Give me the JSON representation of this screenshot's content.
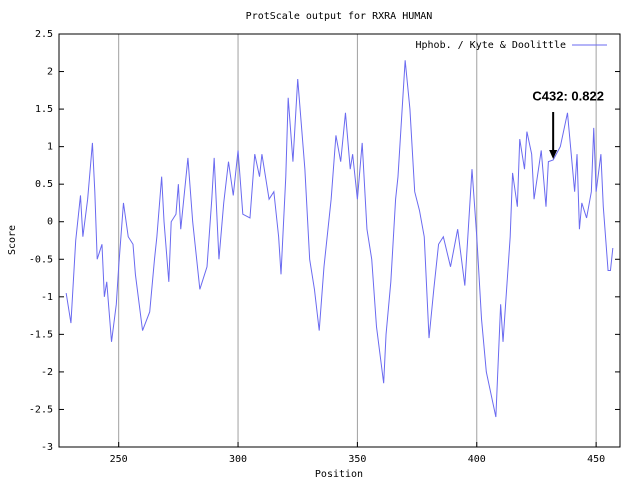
{
  "chart_data": {
    "type": "line",
    "title": "ProtScale output for RXRA HUMAN",
    "x_label": "Position",
    "y_label": "Score",
    "x": [
      228,
      230,
      231,
      232,
      234,
      235,
      237,
      239,
      240,
      241,
      243,
      244,
      245,
      247,
      249,
      250,
      252,
      254,
      256,
      257,
      260,
      263,
      265,
      266,
      268,
      269,
      271,
      272,
      274,
      275,
      276,
      279,
      281,
      282,
      284,
      287,
      289,
      290,
      292,
      294,
      296,
      298,
      300,
      302,
      305,
      307,
      309,
      310,
      313,
      315,
      317,
      318,
      320,
      321,
      323,
      325,
      327,
      328,
      330,
      332,
      334,
      336,
      339,
      341,
      343,
      345,
      347,
      348,
      350,
      352,
      354,
      356,
      358,
      361,
      362,
      364,
      366,
      367,
      370,
      372,
      374,
      376,
      378,
      380,
      382,
      384,
      386,
      389,
      392,
      395,
      398,
      400,
      402,
      404,
      408,
      410,
      411,
      414,
      415,
      417,
      418,
      420,
      421,
      423,
      424,
      427,
      429,
      430,
      432,
      435,
      438,
      441,
      442,
      443,
      444,
      446,
      448,
      449,
      450,
      452,
      453,
      455,
      456,
      457
    ],
    "series": [
      {
        "name": "Hphob. / Kyte & Doolittle",
        "color": "#6a6af0",
        "values": [
          -0.95,
          -1.35,
          -0.8,
          -0.25,
          0.35,
          -0.2,
          0.3,
          1.05,
          0.4,
          -0.5,
          -0.3,
          -1.0,
          -0.8,
          -1.6,
          -1.1,
          -0.6,
          0.25,
          -0.2,
          -0.3,
          -0.7,
          -1.45,
          -1.2,
          -0.5,
          -0.2,
          0.6,
          0.0,
          -0.8,
          0.0,
          0.1,
          0.5,
          -0.1,
          0.85,
          0.0,
          -0.3,
          -0.9,
          -0.6,
          0.3,
          0.85,
          -0.5,
          0.25,
          0.8,
          0.35,
          0.95,
          0.1,
          0.05,
          0.9,
          0.6,
          0.9,
          0.3,
          0.4,
          -0.2,
          -0.7,
          0.6,
          1.65,
          0.8,
          1.9,
          1.1,
          0.7,
          -0.5,
          -0.9,
          -1.45,
          -0.6,
          0.3,
          1.15,
          0.8,
          1.45,
          0.7,
          0.9,
          0.3,
          1.05,
          -0.1,
          -0.5,
          -1.4,
          -2.15,
          -1.5,
          -0.8,
          0.3,
          0.6,
          2.15,
          1.5,
          0.4,
          0.15,
          -0.2,
          -1.55,
          -0.9,
          -0.3,
          -0.2,
          -0.6,
          -0.1,
          -0.85,
          0.7,
          -0.2,
          -1.3,
          -2.0,
          -2.6,
          -1.1,
          -1.6,
          -0.2,
          0.65,
          0.2,
          1.1,
          0.7,
          1.2,
          0.9,
          0.3,
          0.95,
          0.2,
          0.8,
          0.822,
          1.0,
          1.45,
          0.4,
          0.9,
          -0.1,
          0.25,
          0.05,
          0.4,
          1.25,
          0.4,
          0.9,
          0.2,
          -0.65,
          -0.65,
          -0.35
        ]
      }
    ],
    "xlim": [
      225,
      460
    ],
    "xticks": [
      250,
      300,
      350,
      400,
      450
    ],
    "ylim": [
      -3,
      2.5
    ],
    "yticks": [
      -3,
      -2.5,
      -2,
      -1.5,
      -1,
      -0.5,
      0,
      0.5,
      1,
      1.5,
      2,
      2.5
    ],
    "grid": "x",
    "legend": "top-right",
    "annotation": {
      "text": "C432: 0.822",
      "x": 432,
      "y": 0.822
    }
  }
}
